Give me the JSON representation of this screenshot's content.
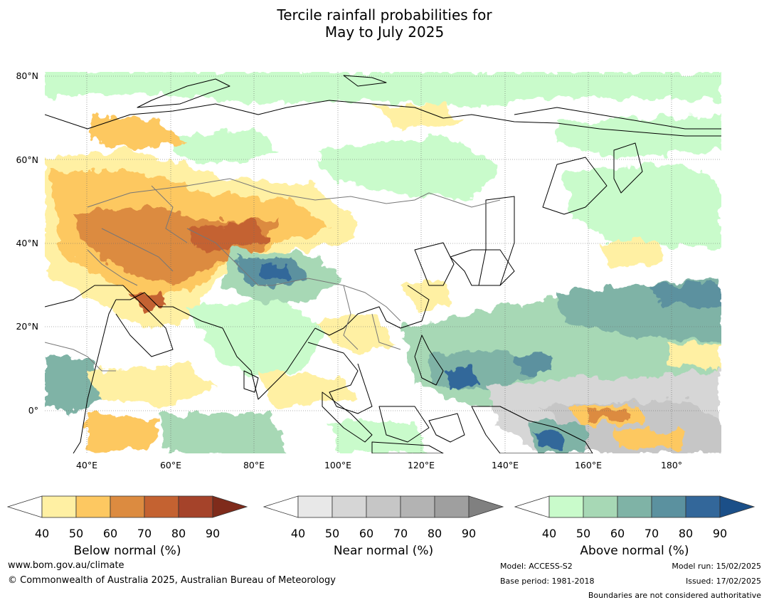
{
  "title": {
    "line1": "Tercile rainfall probabilities for",
    "line2": "May to July 2025"
  },
  "map": {
    "lat_labels": [
      "80°N",
      "60°N",
      "40°N",
      "20°N",
      "0°"
    ],
    "lon_labels": [
      "40°E",
      "60°E",
      "80°E",
      "100°E",
      "120°E",
      "140°E",
      "160°E",
      "180°"
    ],
    "colors": {
      "below": [
        "#fff0a3",
        "#fdc861",
        "#dc8b40",
        "#c46231",
        "#a5432a",
        "#7f2b1b"
      ],
      "near": [
        "#e8e8e8",
        "#d6d6d6",
        "#c6c6c6",
        "#b3b3b3",
        "#9f9f9f",
        "#808080"
      ],
      "above": [
        "#c9fbcb",
        "#a7d8b5",
        "#7fb3a6",
        "#5b919f",
        "#33679a",
        "#1b4f88"
      ]
    }
  },
  "colorbars": [
    {
      "caption": "Below normal (%)",
      "ticks": [
        "40",
        "50",
        "60",
        "70",
        "80",
        "90"
      ]
    },
    {
      "caption": "Near normal (%)",
      "ticks": [
        "40",
        "50",
        "60",
        "70",
        "80",
        "90"
      ]
    },
    {
      "caption": "Above normal (%)",
      "ticks": [
        "40",
        "50",
        "60",
        "70",
        "80",
        "90"
      ]
    }
  ],
  "footer": {
    "website": "www.bom.gov.au/climate",
    "copyright": "© Commonwealth of Australia 2025, Australian Bureau of Meteorology",
    "model": "Model: ACCESS-S2",
    "base_period": "Base period: 1981-2018",
    "model_run": "Model run: 15/02/2025",
    "issued": "Issued: 17/02/2025",
    "disclaimer": "Boundaries are not considered authoritative"
  }
}
